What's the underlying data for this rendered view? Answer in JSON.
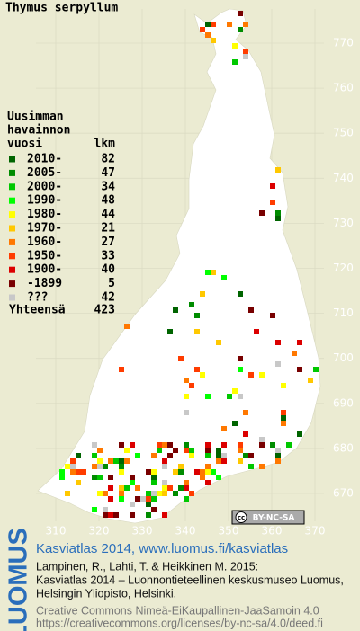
{
  "title": "Thymus serpyllum",
  "legend": {
    "heading": [
      "Uusimman",
      "havainnon",
      "vuosi"
    ],
    "count_heading": "lkm",
    "rows": [
      {
        "label": "2010-",
        "count": 82,
        "color": "#006400"
      },
      {
        "label": "2005-",
        "count": 47,
        "color": "#008c00"
      },
      {
        "label": "2000-",
        "count": 34,
        "color": "#00c800"
      },
      {
        "label": "1990-",
        "count": 48,
        "color": "#00ff00"
      },
      {
        "label": "1980-",
        "count": 44,
        "color": "#ffff00"
      },
      {
        "label": "1970-",
        "count": 21,
        "color": "#ffc800"
      },
      {
        "label": "1960-",
        "count": 27,
        "color": "#ff7800"
      },
      {
        "label": "1950-",
        "count": 33,
        "color": "#ff3c00"
      },
      {
        "label": "1900-",
        "count": 40,
        "color": "#dc0000"
      },
      {
        "label": "-1899",
        "count": 5,
        "color": "#780000"
      },
      {
        "label": "???",
        "count": 42,
        "color": "#c8c8c8"
      }
    ],
    "total_label": "Yhteensä",
    "total": 423
  },
  "grid": {
    "northing": [
      770,
      760,
      750,
      740,
      730,
      720,
      710,
      700,
      690,
      680,
      670
    ],
    "easting": [
      310,
      320,
      330,
      340,
      350,
      360,
      370
    ]
  },
  "license": {
    "icon": "cc",
    "text": "BY-NC-SA"
  },
  "footer": {
    "brand": "LUOMUS",
    "title": "Kasviatlas 2014, www.luomus.fi/kasviatlas",
    "citation": [
      "Lampinen, R., Lahti, T. & Heikkinen M. 2015:",
      "Kasviatlas 2014 – Luonnontieteellinen keskusmuseo Luomus,",
      "Helsingin Yliopisto, Helsinki."
    ],
    "license_lines": [
      "Creative Commons Nimeä-EiKaupallinen-JaaSamoin 4.0",
      "https://creativecommons.org/licenses/by-nc-sa/4.0/deed.fi"
    ]
  }
}
